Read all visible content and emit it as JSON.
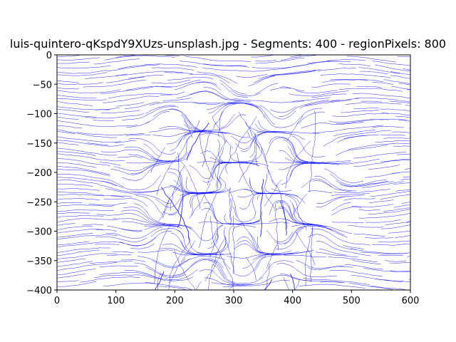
{
  "chart_data": {
    "type": "line",
    "title": "luis-quintero-qKspdY9XUzs-unsplash.jpg - Segments: 400 - regionPixels: 800",
    "xlabel": "",
    "ylabel": "",
    "xlim": [
      0,
      600
    ],
    "ylim": [
      -400,
      0
    ],
    "x_ticks": [
      0,
      100,
      200,
      300,
      400,
      500,
      600
    ],
    "y_ticks": [
      0,
      -50,
      -100,
      -150,
      -200,
      -250,
      -300,
      -350,
      -400
    ],
    "x_tick_labels": [
      "0",
      "100",
      "200",
      "300",
      "400",
      "500",
      "600"
    ],
    "y_tick_labels": [
      "0",
      "−50",
      "−100",
      "−150",
      "−200",
      "−250",
      "−300",
      "−350",
      "−400"
    ],
    "grid": false,
    "series_color": "#0000ff",
    "description_of_marks": "many thin blue contour segments tracing texture flow across the full plot area"
  }
}
